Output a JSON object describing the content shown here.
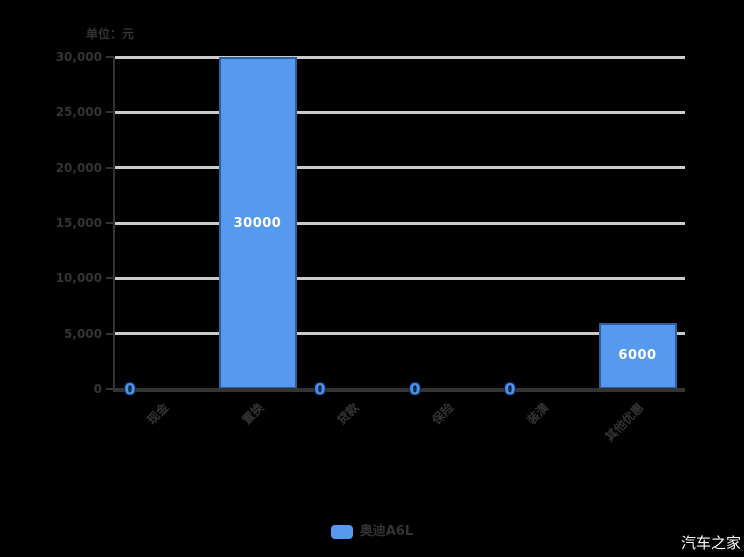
{
  "chart_data": {
    "type": "bar",
    "title": "单位：元",
    "categories": [
      "现金",
      "置换",
      "贷款",
      "保险",
      "装潢",
      "其他优惠"
    ],
    "values": [
      0,
      30000,
      0,
      0,
      0,
      6000
    ],
    "bar_labels": [
      "0",
      "30000",
      "0",
      "0",
      "0",
      "6000"
    ],
    "y_ticks": [
      "0",
      "5,000",
      "10,000",
      "15,000",
      "20,000",
      "25,000",
      "30,000"
    ],
    "y_tick_values": [
      0,
      5000,
      10000,
      15000,
      20000,
      25000,
      30000
    ],
    "ylim": [
      0,
      30000
    ],
    "xlabel": "",
    "ylabel": "单位：元",
    "grid": true,
    "legend_position": "bottom",
    "series": [
      {
        "name": "奥迪A6L",
        "values": [
          0,
          30000,
          0,
          0,
          0,
          6000
        ]
      }
    ]
  },
  "legend": {
    "label": "奥迪A6L"
  },
  "watermark": "汽车之家",
  "colors": {
    "background": "#000000",
    "bar_fill": "#559AEE",
    "bar_border": "#2D5E9E",
    "grid": "#CBCBCB",
    "axis": "#333333",
    "axis_text": "#333333",
    "value_label": "#FFFFFF",
    "zero_label": "#4E92EC",
    "watermark_text": "#FFFFFF"
  }
}
